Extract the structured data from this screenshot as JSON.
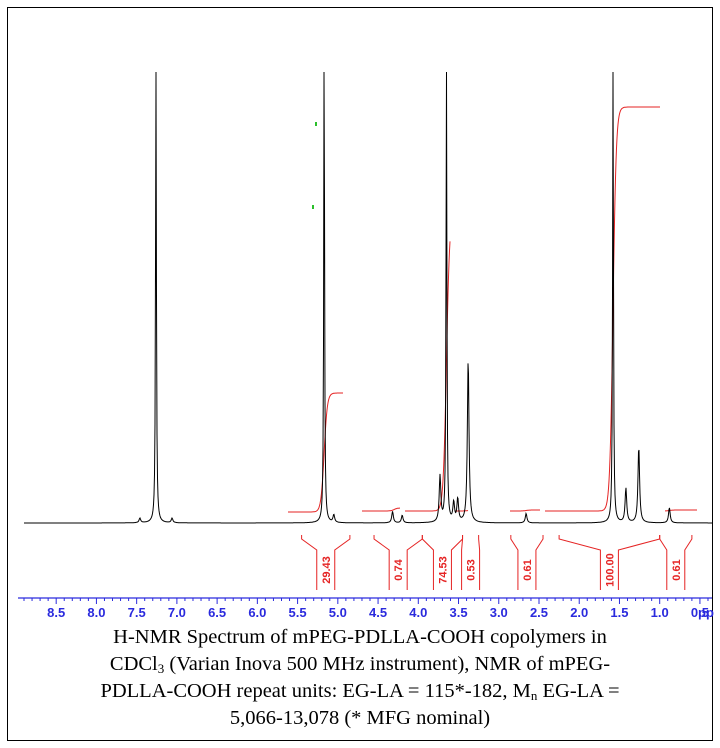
{
  "chart_data": {
    "type": "line",
    "title": "",
    "xlabel": "",
    "ylabel": "",
    "x_axis_unit_truncated": "pp",
    "xlim": [
      8.9,
      0.35
    ],
    "x_axis_reversed": true,
    "ticks": [
      "8.5",
      "8.0",
      "7.5",
      "7.0",
      "6.5",
      "6.0",
      "5.5",
      "5.0",
      "4.5",
      "4.0",
      "3.5",
      "3.0",
      "2.5",
      "2.0",
      "1.5",
      "1.0",
      "0.5"
    ],
    "peaks": [
      {
        "ppm": 7.26,
        "relative_height": 1.3
      },
      {
        "ppm": 7.46,
        "relative_height": 0.012
      },
      {
        "ppm": 7.06,
        "relative_height": 0.012
      },
      {
        "ppm": 5.17,
        "relative_height": 1.3
      },
      {
        "ppm": 5.05,
        "relative_height": 0.02
      },
      {
        "ppm": 4.32,
        "relative_height": 0.03
      },
      {
        "ppm": 4.2,
        "relative_height": 0.02
      },
      {
        "ppm": 3.65,
        "relative_height": 1.3
      },
      {
        "ppm": 3.73,
        "relative_height": 0.12
      },
      {
        "ppm": 3.56,
        "relative_height": 0.05
      },
      {
        "ppm": 3.51,
        "relative_height": 0.06
      },
      {
        "ppm": 3.38,
        "relative_height": 0.43
      },
      {
        "ppm": 2.66,
        "relative_height": 0.025
      },
      {
        "ppm": 1.58,
        "relative_height": 1.3
      },
      {
        "ppm": 1.42,
        "relative_height": 0.09
      },
      {
        "ppm": 1.26,
        "relative_height": 0.2
      },
      {
        "ppm": 0.88,
        "relative_height": 0.04
      }
    ],
    "integrals": [
      {
        "from": 5.45,
        "to": 4.85,
        "value": "29.43"
      },
      {
        "from": 4.55,
        "to": 3.95,
        "value": "0.74"
      },
      {
        "from": 3.95,
        "to": 3.45,
        "value": "74.53"
      },
      {
        "from": 3.45,
        "to": 3.25,
        "value": "0.53"
      },
      {
        "from": 2.85,
        "to": 2.45,
        "value": "0.61"
      },
      {
        "from": 2.25,
        "to": 1.0,
        "value": "100.00"
      },
      {
        "from": 1.0,
        "to": 0.6,
        "value": "0.61"
      }
    ],
    "colors": {
      "spectrum": "#000000",
      "integral": "#e52323",
      "axis": "#2a2add",
      "peak_marker": "#2bbf2b"
    }
  },
  "caption": {
    "line1": "H-NMR Spectrum of mPEG-PDLLA-COOH copolymers in",
    "line2_pre": "CDCl",
    "line2_sub": "3",
    "line2_post": " (Varian Inova 500 MHz instrument), NMR of mPEG-",
    "line3_pre": "PDLLA-COOH repeat units:  EG-LA = 115*-182, M",
    "line3_sub": "n",
    "line3_post": " EG-LA =",
    "line4": "5,066-13,078 (* MFG nominal)"
  }
}
